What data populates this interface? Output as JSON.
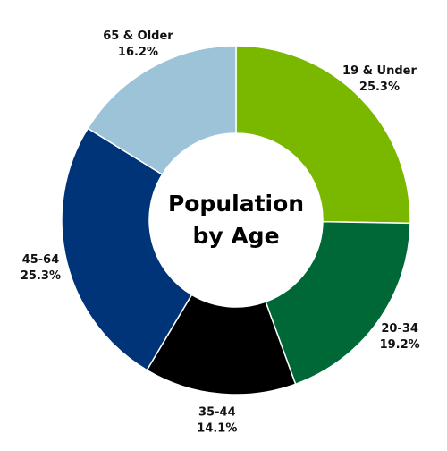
{
  "chart_data": {
    "type": "donut",
    "title": "Population by Age",
    "categories": [
      "19 & Under",
      "20-34",
      "35-44",
      "45-64",
      "65 & Older"
    ],
    "values": [
      25.3,
      19.2,
      14.1,
      25.3,
      16.2
    ],
    "value_labels": [
      "25.3%",
      "19.2%",
      "14.1%",
      "25.3%",
      "16.2%"
    ],
    "colors": [
      "#7ab800",
      "#006837",
      "#000000",
      "#003478",
      "#9dc3d9"
    ]
  }
}
